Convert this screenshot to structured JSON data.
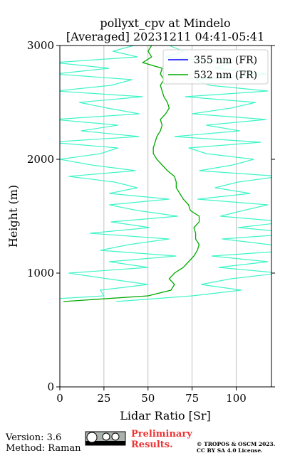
{
  "chart_data": {
    "type": "line",
    "title": [
      "pollyxt_cpv at Mindelo",
      "[Averaged] 20231211 04:41-05:41"
    ],
    "x_label": "Lidar Ratio [Sr]",
    "y_label": "Height (m)",
    "xlim": [
      0,
      120
    ],
    "xticks": [
      0,
      25,
      50,
      75,
      100
    ],
    "ylim": [
      0,
      3000
    ],
    "yticks": [
      0,
      1000,
      2000,
      3000
    ],
    "grid": true,
    "legend": "upper right",
    "y": [
      750,
      800,
      850,
      900,
      950,
      1000,
      1050,
      1100,
      1150,
      1200,
      1250,
      1300,
      1350,
      1400,
      1450,
      1500,
      1550,
      1600,
      1650,
      1700,
      1750,
      1800,
      1850,
      1900,
      1950,
      2000,
      2050,
      2100,
      2150,
      2200,
      2250,
      2300,
      2350,
      2400,
      2450,
      2500,
      2550,
      2600,
      2650,
      2700,
      2750,
      2800,
      2850,
      2900,
      2950,
      3000
    ],
    "series": [
      {
        "name": "355 nm (FR)",
        "color": "#0000ff",
        "values": [
          null,
          null,
          null,
          null,
          null,
          null,
          null,
          null,
          null,
          null,
          null,
          null,
          null,
          null,
          null,
          null,
          null,
          null,
          null,
          null,
          null,
          null,
          null,
          null,
          null,
          null,
          null,
          null,
          null,
          null,
          null,
          null,
          null,
          null,
          null,
          null,
          null,
          null,
          null,
          null,
          null,
          null,
          null,
          null,
          null,
          null
        ]
      },
      {
        "name": "532 nm (FR)",
        "color": "#00aa00",
        "error_color": "#40f5c8",
        "values": [
          2,
          50,
          63,
          65,
          62,
          65,
          70,
          73,
          76,
          78,
          79,
          77,
          77,
          76,
          79,
          79,
          74,
          73,
          70,
          68,
          66,
          66,
          65,
          61,
          58,
          55,
          53,
          53,
          54,
          55,
          57,
          58,
          57,
          60,
          62,
          61,
          59,
          58,
          57,
          59,
          57,
          58,
          47,
          52,
          50,
          52
        ],
        "errors": [
          30,
          25,
          40,
          15,
          35,
          60,
          20,
          45,
          10,
          55,
          40,
          15,
          60,
          25,
          50,
          12,
          30,
          45,
          8,
          40,
          22,
          35,
          60,
          18,
          40,
          55,
          30,
          20,
          60,
          10,
          45,
          25,
          60,
          15,
          35,
          50,
          12,
          60,
          28,
          18,
          60,
          30,
          50,
          8,
          20,
          10
        ]
      }
    ]
  },
  "footer": {
    "version": "Version: 3.6",
    "method": "Method: Raman",
    "notice": [
      "Preliminary",
      "Results."
    ],
    "copyright": [
      "© TROPOS & OSCM 2023.",
      "CC BY SA 4.0 License."
    ]
  }
}
